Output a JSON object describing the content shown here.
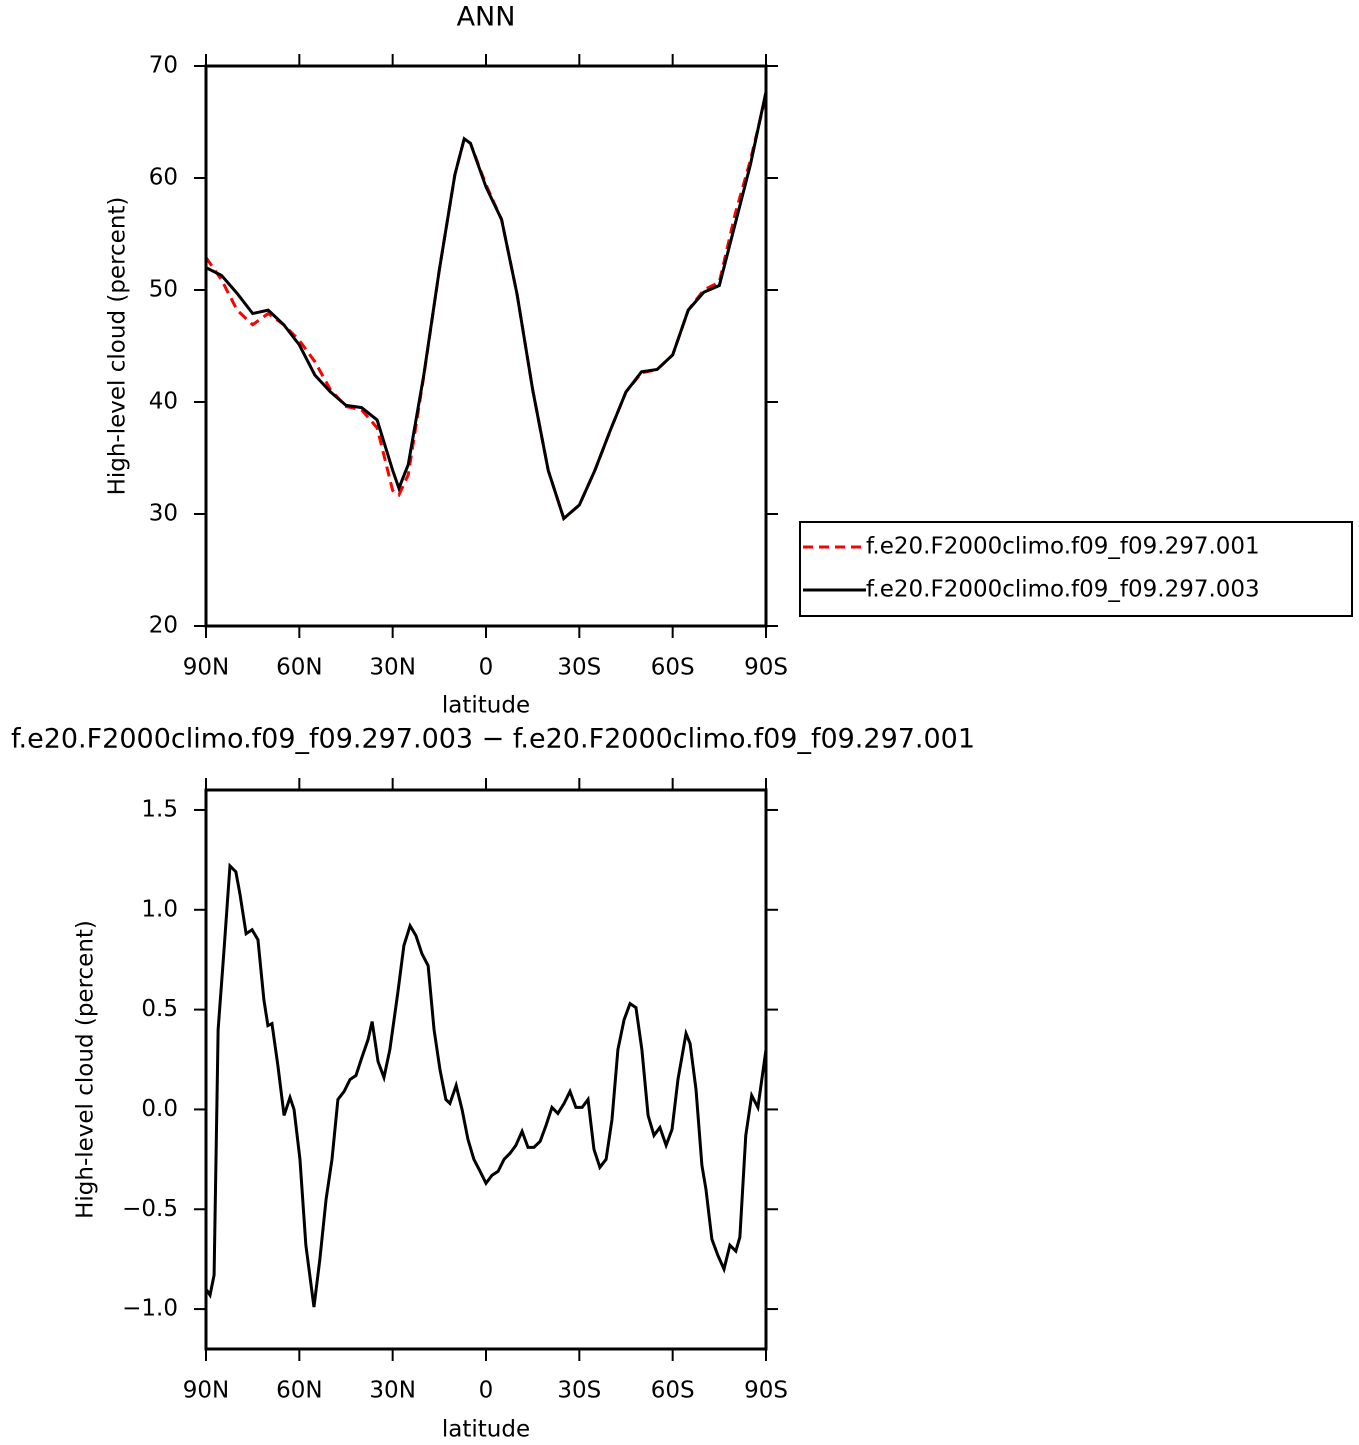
{
  "chart_data": [
    {
      "type": "line",
      "title": "ANN",
      "xlabel": "latitude",
      "ylabel": "High-level cloud (percent)",
      "x": [
        90,
        85,
        80,
        75,
        70,
        65,
        60,
        55,
        50,
        45,
        40,
        35,
        30,
        28,
        25,
        20,
        15,
        10,
        7,
        5,
        0,
        -5,
        -10,
        -15,
        -20,
        -25,
        -30,
        -35,
        -40,
        -45,
        -50,
        -55,
        -60,
        -65,
        -70,
        -75,
        -80,
        -85,
        -90
      ],
      "series": [
        {
          "name": "f.e20.F2000climo.f09_f09.297.001",
          "color": "#ff0000",
          "line_style": "dashed",
          "values": [
            52.9,
            50.9,
            48.2,
            46.9,
            47.9,
            46.9,
            45.5,
            43.6,
            41.1,
            39.6,
            39.3,
            37.7,
            32.1,
            31.7,
            33.5,
            42.3,
            51.8,
            60.3,
            63.5,
            63.1,
            59.4,
            56.3,
            49.6,
            41.1,
            33.9,
            29.6,
            30.8,
            33.9,
            37.5,
            40.9,
            42.6,
            42.9,
            44.2,
            48.2,
            50.0,
            50.7,
            56.7,
            61.6,
            67.4
          ]
        },
        {
          "name": "f.e20.F2000climo.f09_f09.297.003",
          "color": "#000000",
          "line_style": "solid",
          "values": [
            52.0,
            51.3,
            49.7,
            47.9,
            48.2,
            46.9,
            45.1,
            42.4,
            40.9,
            39.7,
            39.5,
            38.4,
            33.9,
            32.3,
            34.4,
            42.4,
            51.8,
            60.3,
            63.5,
            63.1,
            59.2,
            56.3,
            49.6,
            41.1,
            33.9,
            29.6,
            30.8,
            33.9,
            37.5,
            40.9,
            42.7,
            42.9,
            44.2,
            48.2,
            49.8,
            50.4,
            55.8,
            61.2,
            67.7
          ]
        }
      ],
      "xlim": [
        90,
        -90
      ],
      "xticks": [
        {
          "value": 90,
          "label": "90N"
        },
        {
          "value": 60,
          "label": "60N"
        },
        {
          "value": 30,
          "label": "30N"
        },
        0,
        {
          "value": -30,
          "label": "30S"
        },
        {
          "value": -60,
          "label": "60S"
        },
        {
          "value": -90,
          "label": "90S"
        }
      ],
      "ylim": [
        20,
        70
      ],
      "yticks": [
        20,
        30,
        40,
        50,
        60,
        70
      ],
      "legend": "outside right"
    },
    {
      "type": "line",
      "title": "f.e20.F2000climo.f09_f09.297.003 − f.e20.F2000climo.f09_f09.297.001",
      "xlabel": "latitude",
      "ylabel": "High-level cloud (percent)",
      "x": [
        90,
        88.7,
        87.4,
        86.1,
        84.2,
        82.3,
        80.4,
        79.1,
        77.1,
        75.2,
        73.3,
        71.4,
        70.1,
        68.8,
        66.9,
        64.9,
        63.0,
        61.7,
        59.8,
        57.9,
        55.3,
        53.4,
        51.4,
        49.5,
        47.6,
        45.6,
        43.7,
        41.8,
        39.9,
        37.9,
        36.6,
        34.7,
        32.8,
        30.9,
        28.3,
        26.4,
        24.4,
        22.5,
        20.6,
        18.6,
        16.7,
        14.8,
        12.9,
        11.6,
        9.6,
        7.7,
        5.8,
        3.9,
        1.9,
        0,
        -1.9,
        -3.9,
        -5.8,
        -7.7,
        -9.6,
        -11.6,
        -13.5,
        -15.4,
        -17.4,
        -19.3,
        -21.2,
        -23.1,
        -25.1,
        -27.0,
        -28.9,
        -30.9,
        -32.8,
        -34.7,
        -36.6,
        -38.6,
        -40.5,
        -42.4,
        -44.4,
        -46.3,
        -48.2,
        -50.1,
        -52.1,
        -54.0,
        -55.9,
        -57.9,
        -59.8,
        -61.7,
        -64.3,
        -65.6,
        -67.5,
        -69.4,
        -70.7,
        -72.6,
        -74.5,
        -76.5,
        -78.4,
        -80.3,
        -81.6,
        -83.5,
        -85.4,
        -87.4,
        -90
      ],
      "series": [
        {
          "color": "#000000",
          "line_style": "solid",
          "values": [
            -0.9,
            -0.93,
            -0.83,
            0.4,
            0.8,
            1.22,
            1.19,
            1.08,
            0.88,
            0.9,
            0.85,
            0.55,
            0.42,
            0.43,
            0.22,
            -0.03,
            0.06,
            0.0,
            -0.25,
            -0.68,
            -0.99,
            -0.75,
            -0.45,
            -0.25,
            0.05,
            0.09,
            0.15,
            0.17,
            0.26,
            0.35,
            0.44,
            0.24,
            0.16,
            0.3,
            0.59,
            0.82,
            0.92,
            0.87,
            0.78,
            0.72,
            0.4,
            0.2,
            0.05,
            0.03,
            0.12,
            0.0,
            -0.15,
            -0.25,
            -0.31,
            -0.37,
            -0.33,
            -0.31,
            -0.25,
            -0.22,
            -0.18,
            -0.11,
            -0.19,
            -0.19,
            -0.16,
            -0.08,
            0.01,
            -0.02,
            0.03,
            0.09,
            0.01,
            0.01,
            0.05,
            -0.2,
            -0.29,
            -0.25,
            -0.05,
            0.3,
            0.45,
            0.53,
            0.51,
            0.3,
            -0.03,
            -0.13,
            -0.09,
            -0.18,
            -0.1,
            0.15,
            0.38,
            0.33,
            0.1,
            -0.28,
            -0.4,
            -0.65,
            -0.73,
            -0.8,
            -0.68,
            -0.71,
            -0.64,
            -0.13,
            0.07,
            0.01,
            0.3
          ]
        }
      ],
      "xlim": [
        90,
        -90
      ],
      "xticks": [
        {
          "value": 90,
          "label": "90N"
        },
        {
          "value": 60,
          "label": "60N"
        },
        {
          "value": 30,
          "label": "30N"
        },
        0,
        {
          "value": -30,
          "label": "30S"
        },
        {
          "value": -60,
          "label": "60S"
        },
        {
          "value": -90,
          "label": "90S"
        }
      ],
      "ylim": [
        -1.2,
        1.6
      ],
      "yticks": [
        {
          "value": -1,
          "label": "−1.0"
        },
        {
          "value": -0.5,
          "label": "−0.5"
        },
        {
          "value": 0,
          "label": "0.0"
        },
        0.5,
        {
          "value": 1,
          "label": "1.0"
        },
        1.5
      ]
    }
  ]
}
